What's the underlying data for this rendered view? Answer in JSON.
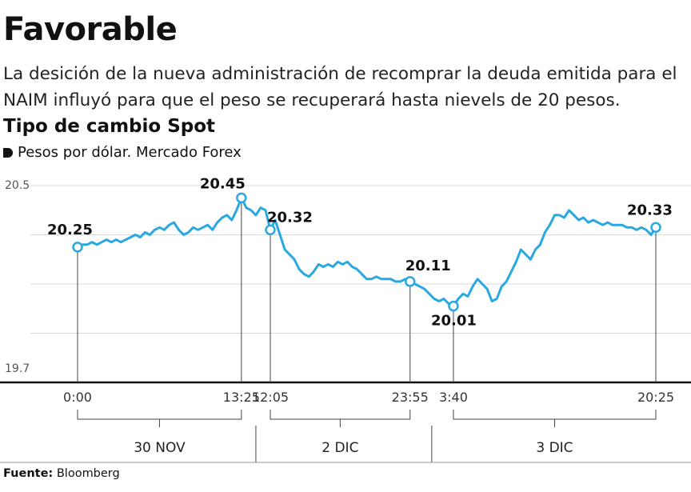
{
  "chart_data": {
    "type": "line",
    "title": "Favorable",
    "subtitle": "La desición de la nueva administración de recomprar la deuda emitida para el NAIM influyó para que el peso se recuperará hasta nievels de 20 pesos.",
    "chart_title": "Tipo de cambio Spot",
    "y_label": "Pesos por dólar. Mercado Forex",
    "source_label": "Fuente:",
    "source": "Bloomberg",
    "color": "#2aa8e0",
    "categories": [
      "0:00",
      null,
      null,
      null,
      null,
      null,
      null,
      null,
      null,
      null,
      null,
      null,
      null,
      null,
      null,
      null,
      null,
      null,
      null,
      null,
      null,
      null,
      null,
      null,
      null,
      null,
      null,
      null,
      null,
      null,
      null,
      null,
      null,
      null,
      "13:25",
      null,
      null,
      null,
      null,
      null,
      "12:05",
      null,
      null,
      null,
      null,
      null,
      null,
      null,
      null,
      null,
      null,
      null,
      null,
      null,
      null,
      null,
      null,
      null,
      null,
      null,
      null,
      null,
      null,
      null,
      null,
      null,
      null,
      null,
      null,
      "23:55",
      null,
      null,
      null,
      null,
      null,
      null,
      null,
      null,
      "3:40",
      null,
      null,
      null,
      null,
      null,
      null,
      null,
      null,
      null,
      null,
      null,
      null,
      null,
      null,
      null,
      null,
      null,
      null,
      null,
      null,
      null,
      null,
      null,
      null,
      null,
      null,
      null,
      null,
      null,
      null,
      null,
      null,
      null,
      null,
      null,
      null,
      null,
      null,
      null,
      null,
      null,
      "20:25"
    ],
    "values": [
      20.25,
      20.26,
      20.26,
      20.27,
      20.26,
      20.27,
      20.28,
      20.27,
      20.28,
      20.27,
      20.28,
      20.29,
      20.3,
      20.29,
      20.31,
      20.3,
      20.32,
      20.33,
      20.32,
      20.34,
      20.35,
      20.32,
      20.3,
      20.31,
      20.33,
      20.32,
      20.33,
      20.34,
      20.32,
      20.35,
      20.37,
      20.38,
      20.36,
      20.4,
      20.45,
      20.41,
      20.4,
      20.38,
      20.41,
      20.4,
      20.32,
      20.36,
      20.3,
      20.24,
      20.22,
      20.2,
      20.16,
      20.14,
      20.13,
      20.15,
      20.18,
      20.17,
      20.18,
      20.17,
      20.19,
      20.18,
      20.19,
      20.17,
      20.16,
      20.14,
      20.12,
      20.12,
      20.13,
      20.12,
      20.12,
      20.12,
      20.11,
      20.11,
      20.12,
      20.11,
      20.1,
      20.09,
      20.08,
      20.06,
      20.04,
      20.03,
      20.04,
      20.02,
      20.01,
      20.04,
      20.06,
      20.05,
      20.09,
      20.12,
      20.1,
      20.08,
      20.03,
      20.04,
      20.09,
      20.11,
      20.15,
      20.19,
      20.24,
      20.22,
      20.2,
      20.24,
      20.26,
      20.31,
      20.34,
      20.38,
      20.38,
      20.37,
      20.4,
      20.38,
      20.36,
      20.37,
      20.35,
      20.36,
      20.35,
      20.34,
      20.35,
      20.34,
      20.34,
      20.34,
      20.33,
      20.33,
      20.32,
      20.33,
      20.32,
      20.3,
      20.33
    ],
    "ylim": [
      19.7,
      20.5
    ],
    "yticks": [
      19.7,
      20.5
    ],
    "gridlines": [
      19.9,
      20.1,
      20.3,
      20.5
    ],
    "groups": [
      {
        "label": "30 NOV",
        "from": "0:00",
        "to": "13:25"
      },
      {
        "label": "2 DIC",
        "from": "12:05",
        "to": "23:55"
      },
      {
        "label": "3 DIC",
        "from": "3:40",
        "to": "20:25"
      }
    ]
  }
}
